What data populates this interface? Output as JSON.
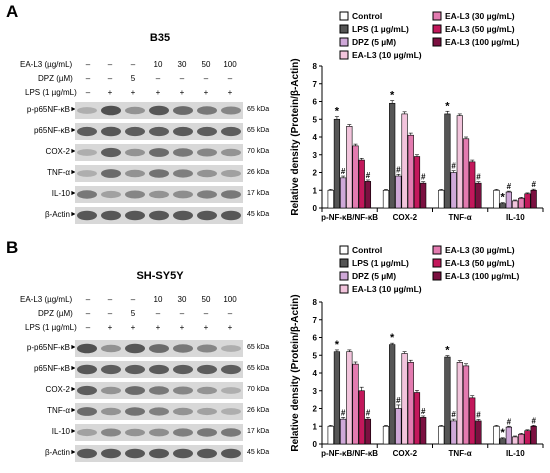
{
  "panels": [
    {
      "letter": "A",
      "cell_line": "B35",
      "treatments": {
        "ea_label": "EA-L3 (µg/mL)",
        "dpz_label": "DPZ (µM)",
        "lps_label": "LPS (1 µg/mL)",
        "ea_values": [
          "–",
          "–",
          "–",
          "10",
          "30",
          "50",
          "100"
        ],
        "dpz_values": [
          "–",
          "–",
          "5",
          "–",
          "–",
          "–",
          "–"
        ],
        "lps_values": [
          "–",
          "+",
          "+",
          "+",
          "+",
          "+",
          "+"
        ]
      },
      "blots": [
        {
          "name": "p-p65NF-κB",
          "kda": "65 kDa"
        },
        {
          "name": "p65NF-κB",
          "kda": "65 kDa"
        },
        {
          "name": "COX-2",
          "kda": "70 kDa"
        },
        {
          "name": "TNF-α",
          "kda": "26 kDa"
        },
        {
          "name": "IL-10",
          "kda": "17 kDa"
        },
        {
          "name": "β-Actin",
          "kda": "45 kDa"
        }
      ]
    },
    {
      "letter": "B",
      "cell_line": "SH-SY5Y",
      "treatments": {
        "ea_label": "EA-L3 (µg/mL)",
        "dpz_label": "DPZ (µM)",
        "lps_label": "LPS (1 µg/mL)",
        "ea_values": [
          "–",
          "–",
          "–",
          "10",
          "30",
          "50",
          "100"
        ],
        "dpz_values": [
          "–",
          "–",
          "5",
          "–",
          "–",
          "–",
          "–"
        ],
        "lps_values": [
          "–",
          "+",
          "+",
          "+",
          "+",
          "+",
          "+"
        ]
      },
      "blots": [
        {
          "name": "p-p65NF-κB",
          "kda": "65 kDa"
        },
        {
          "name": "p65NF-κB",
          "kda": "65 kDa"
        },
        {
          "name": "COX-2",
          "kda": "70 kDa"
        },
        {
          "name": "TNF-α",
          "kda": "26 kDa"
        },
        {
          "name": "IL-10",
          "kda": "17 kDa"
        },
        {
          "name": "β-Actin",
          "kda": "45 kDa"
        }
      ]
    }
  ],
  "legend": [
    {
      "label": "Control",
      "color": "#ffffff"
    },
    {
      "label": "LPS (1 µg/mL)",
      "color": "#555555"
    },
    {
      "label": "DPZ (5 µM)",
      "color": "#cfa8d8"
    },
    {
      "label": "EA-L3 (10 µg/mL)",
      "color": "#f2c4dc"
    },
    {
      "label": "EA-L3 (30 µg/mL)",
      "color": "#e37bb0"
    },
    {
      "label": "EA-L3 (50 µg/mL)",
      "color": "#c2185b"
    },
    {
      "label": "EA-L3 (100 µg/mL)",
      "color": "#7b1040"
    }
  ],
  "chart_data": [
    {
      "type": "bar",
      "panel": "A",
      "ylabel": "Relative density (Protein/β-Actin)",
      "ylim": [
        0,
        8
      ],
      "yticks": [
        "0",
        "1",
        "2",
        "3",
        "4",
        "5",
        "6",
        "7",
        "8"
      ],
      "categories": [
        "p-NF-κB/NF-κB",
        "COX-2",
        "TNF-α",
        "IL-10"
      ],
      "series": [
        {
          "name": "Control",
          "values": [
            1.0,
            1.0,
            1.0,
            1.0
          ]
        },
        {
          "name": "LPS (1 µg/mL)",
          "values": [
            5.0,
            5.9,
            5.3,
            0.25
          ]
        },
        {
          "name": "DPZ (5 µM)",
          "values": [
            1.7,
            1.8,
            2.0,
            0.9
          ]
        },
        {
          "name": "EA-L3 (10 µg/mL)",
          "values": [
            4.6,
            5.3,
            5.2,
            0.4
          ]
        },
        {
          "name": "EA-L3 (30 µg/mL)",
          "values": [
            3.5,
            4.1,
            3.9,
            0.55
          ]
        },
        {
          "name": "EA-L3 (50 µg/mL)",
          "values": [
            2.7,
            2.9,
            2.6,
            0.8
          ]
        },
        {
          "name": "EA-L3 (100 µg/mL)",
          "values": [
            1.5,
            1.4,
            1.4,
            1.0
          ]
        }
      ],
      "errors": [
        [
          0.05,
          0.05,
          0.05,
          0.05
        ],
        [
          0.15,
          0.15,
          0.15,
          0.05
        ],
        [
          0.1,
          0.1,
          0.1,
          0.05
        ],
        [
          0.1,
          0.12,
          0.1,
          0.05
        ],
        [
          0.1,
          0.12,
          0.1,
          0.05
        ],
        [
          0.1,
          0.1,
          0.1,
          0.05
        ],
        [
          0.08,
          0.08,
          0.08,
          0.06
        ]
      ],
      "markers": [
        [
          "",
          "",
          "",
          ""
        ],
        [
          "*",
          "*",
          "*",
          "*"
        ],
        [
          "#",
          "#",
          "#",
          "#"
        ],
        [
          "",
          "",
          "",
          ""
        ],
        [
          "",
          "",
          "",
          ""
        ],
        [
          "",
          "",
          "",
          ""
        ],
        [
          "#",
          "#",
          "#",
          "#"
        ]
      ]
    },
    {
      "type": "bar",
      "panel": "B",
      "ylabel": "Relative density (Protein/β-Actin)",
      "ylim": [
        0,
        8
      ],
      "yticks": [
        "0",
        "1",
        "2",
        "3",
        "4",
        "5",
        "6",
        "7",
        "8"
      ],
      "categories": [
        "p-NF-κB/NF-κB",
        "COX-2",
        "TNF-α",
        "IL-10"
      ],
      "series": [
        {
          "name": "Control",
          "values": [
            1.0,
            1.0,
            1.0,
            1.0
          ]
        },
        {
          "name": "LPS (1 µg/mL)",
          "values": [
            5.2,
            5.6,
            4.9,
            0.3
          ]
        },
        {
          "name": "DPZ (5 µM)",
          "values": [
            1.4,
            2.0,
            1.3,
            0.95
          ]
        },
        {
          "name": "EA-L3 (10 µg/mL)",
          "values": [
            5.2,
            5.1,
            4.6,
            0.4
          ]
        },
        {
          "name": "EA-L3 (30 µg/mL)",
          "values": [
            4.5,
            4.6,
            4.4,
            0.55
          ]
        },
        {
          "name": "EA-L3 (50 µg/mL)",
          "values": [
            3.0,
            2.9,
            2.6,
            0.75
          ]
        },
        {
          "name": "EA-L3 (100 µg/mL)",
          "values": [
            1.4,
            1.5,
            1.3,
            1.0
          ]
        }
      ],
      "errors": [
        [
          0.05,
          0.05,
          0.05,
          0.05
        ],
        [
          0.1,
          0.08,
          0.08,
          0.05
        ],
        [
          0.1,
          0.2,
          0.1,
          0.05
        ],
        [
          0.1,
          0.1,
          0.1,
          0.05
        ],
        [
          0.12,
          0.12,
          0.12,
          0.05
        ],
        [
          0.2,
          0.12,
          0.12,
          0.05
        ],
        [
          0.1,
          0.08,
          0.08,
          0.05
        ]
      ],
      "markers": [
        [
          "",
          "",
          "",
          ""
        ],
        [
          "*",
          "*",
          "*",
          "*"
        ],
        [
          "#",
          "#",
          "#",
          "#"
        ],
        [
          "",
          "",
          "",
          ""
        ],
        [
          "",
          "",
          "",
          ""
        ],
        [
          "",
          "",
          "",
          ""
        ],
        [
          "#",
          "#",
          "#",
          "#"
        ]
      ]
    }
  ]
}
